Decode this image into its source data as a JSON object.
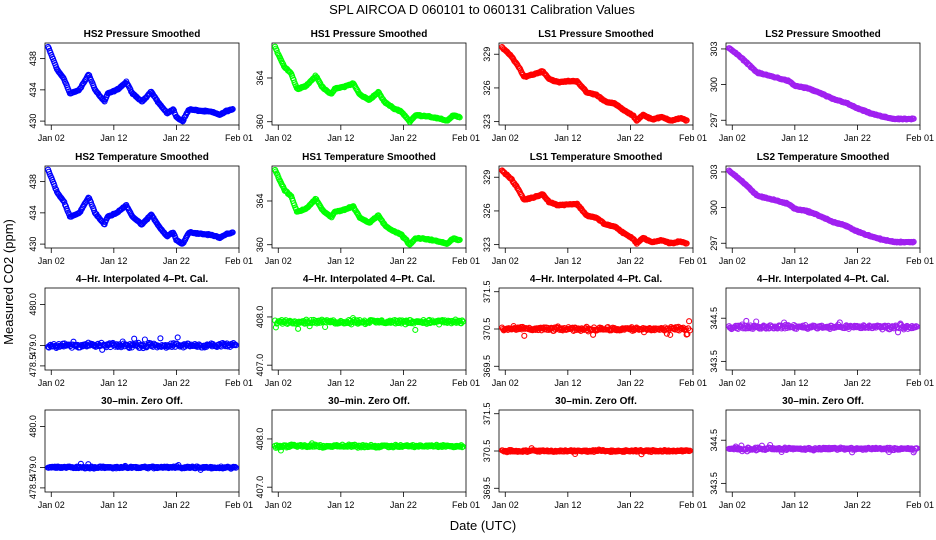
{
  "figure": {
    "title": "SPL   AIRCOA D   060101 to 060131   Calibration Values",
    "xlabel": "Date (UTC)",
    "ylabel": "Measured CO2 (ppm)"
  },
  "series_colors": {
    "HS2": "#0000ff",
    "HS1": "#00ff00",
    "LS1": "#ff0000",
    "LS2": "#a020f0"
  },
  "chart_data": [
    {
      "type": "scatter",
      "series": "HS2",
      "title": "HS2 Pressure Smoothed",
      "xlabel": "",
      "ylabel": "",
      "xlim": [
        0,
        31
      ],
      "ylim": [
        429.5,
        440
      ],
      "xticks": [
        1,
        11,
        21,
        31
      ],
      "xtick_labels": [
        "Jan 02",
        "Jan 12",
        "Jan 22",
        "Feb 01"
      ],
      "yticks": [
        430,
        434,
        438
      ],
      "ytick_labels": [
        "430",
        "434",
        "438"
      ],
      "trend": [
        [
          0.5,
          439.5
        ],
        [
          2,
          436.5
        ],
        [
          3,
          435.5
        ],
        [
          4,
          433.5
        ],
        [
          5.5,
          434
        ],
        [
          7,
          436
        ],
        [
          8,
          434
        ],
        [
          9.5,
          432.5
        ],
        [
          10,
          433.5
        ],
        [
          11.5,
          434
        ],
        [
          13,
          435
        ],
        [
          14,
          433.5
        ],
        [
          15.5,
          432.5
        ],
        [
          17,
          433.8
        ],
        [
          18,
          432.5
        ],
        [
          19.5,
          431
        ],
        [
          20.5,
          431.5
        ],
        [
          21,
          430.5
        ],
        [
          22,
          430
        ],
        [
          23,
          431.5
        ],
        [
          25,
          431.3
        ],
        [
          26.5,
          431.2
        ],
        [
          28,
          430.8
        ],
        [
          29,
          431.3
        ],
        [
          30,
          431.5
        ]
      ]
    },
    {
      "type": "scatter",
      "series": "HS1",
      "title": "HS1 Pressure Smoothed",
      "xlabel": "",
      "ylabel": "",
      "xlim": [
        0,
        31
      ],
      "ylim": [
        359.7,
        367.2
      ],
      "xticks": [
        1,
        11,
        21,
        31
      ],
      "xtick_labels": [
        "Jan 02",
        "Jan 12",
        "Jan 22",
        "Feb 01"
      ],
      "yticks": [
        360,
        364
      ],
      "ytick_labels": [
        "360",
        "364"
      ],
      "trend": [
        [
          0.5,
          366.8
        ],
        [
          2,
          365
        ],
        [
          3,
          364.5
        ],
        [
          4,
          363
        ],
        [
          5.5,
          363.3
        ],
        [
          7,
          364.2
        ],
        [
          8,
          363.2
        ],
        [
          9.5,
          362.5
        ],
        [
          10,
          363
        ],
        [
          11.5,
          363.2
        ],
        [
          13,
          363.5
        ],
        [
          14,
          362.5
        ],
        [
          15.5,
          362
        ],
        [
          17,
          362.7
        ],
        [
          18,
          361.8
        ],
        [
          19.5,
          361.2
        ],
        [
          20.5,
          361
        ],
        [
          21.5,
          360.4
        ],
        [
          22,
          360
        ],
        [
          23,
          360.6
        ],
        [
          25,
          360.5
        ],
        [
          26.5,
          360.3
        ],
        [
          28,
          360.1
        ],
        [
          29,
          360.6
        ],
        [
          30,
          360.4
        ]
      ]
    },
    {
      "type": "scatter",
      "series": "LS1",
      "title": "LS1 Pressure Smoothed",
      "xlabel": "",
      "ylabel": "",
      "xlim": [
        0,
        31
      ],
      "ylim": [
        322.7,
        330
      ],
      "xticks": [
        1,
        11,
        21,
        31
      ],
      "xtick_labels": [
        "Jan 02",
        "Jan 12",
        "Jan 22",
        "Feb 01"
      ],
      "yticks": [
        323,
        326,
        329
      ],
      "ytick_labels": [
        "323",
        "326",
        "329"
      ],
      "trend": [
        [
          0.5,
          329.6
        ],
        [
          2,
          328.8
        ],
        [
          3,
          328
        ],
        [
          4,
          327
        ],
        [
          5.5,
          327.2
        ],
        [
          7,
          327.5
        ],
        [
          8,
          326.8
        ],
        [
          9.5,
          326.5
        ],
        [
          11,
          326.6
        ],
        [
          12.5,
          326.6
        ],
        [
          14,
          325.6
        ],
        [
          15.5,
          325.4
        ],
        [
          17,
          324.8
        ],
        [
          18.5,
          324.6
        ],
        [
          20,
          324
        ],
        [
          21.5,
          323.5
        ],
        [
          22,
          323.1
        ],
        [
          23,
          323.6
        ],
        [
          24.5,
          323.2
        ],
        [
          26,
          323.4
        ],
        [
          27.5,
          323.1
        ],
        [
          29,
          323.3
        ],
        [
          30,
          323.1
        ]
      ]
    },
    {
      "type": "scatter",
      "series": "LS2",
      "title": "LS2 Pressure Smoothed",
      "xlabel": "",
      "ylabel": "",
      "xlim": [
        0,
        31
      ],
      "ylim": [
        296.6,
        303.5
      ],
      "xticks": [
        1,
        11,
        21,
        31
      ],
      "xtick_labels": [
        "Jan 02",
        "Jan 12",
        "Jan 22",
        "Feb 01"
      ],
      "yticks": [
        297,
        300,
        303
      ],
      "ytick_labels": [
        "297",
        "300",
        "303"
      ],
      "trend": [
        [
          0.5,
          303.1
        ],
        [
          3,
          302
        ],
        [
          5,
          301
        ],
        [
          8,
          300.6
        ],
        [
          10,
          300.3
        ],
        [
          11,
          299.9
        ],
        [
          13,
          299.7
        ],
        [
          15,
          299.3
        ],
        [
          17,
          298.8
        ],
        [
          19,
          298.5
        ],
        [
          21,
          298
        ],
        [
          23,
          297.6
        ],
        [
          25,
          297.3
        ],
        [
          27,
          297.1
        ],
        [
          30,
          297.1
        ]
      ]
    },
    {
      "type": "scatter",
      "series": "HS2",
      "title": "HS2 Temperature Smoothed",
      "xlabel": "",
      "ylabel": "",
      "xlim": [
        0,
        31
      ],
      "ylim": [
        429.5,
        440
      ],
      "xticks": [
        1,
        11,
        21,
        31
      ],
      "xtick_labels": [
        "Jan 02",
        "Jan 12",
        "Jan 22",
        "Feb 01"
      ],
      "yticks": [
        430,
        434,
        438
      ],
      "ytick_labels": [
        "430",
        "434",
        "438"
      ],
      "trend": [
        [
          0.5,
          439.5
        ],
        [
          2,
          436.5
        ],
        [
          3,
          435.5
        ],
        [
          4,
          433.5
        ],
        [
          5.5,
          434
        ],
        [
          7,
          436
        ],
        [
          8,
          434
        ],
        [
          9.5,
          432.5
        ],
        [
          10,
          433.5
        ],
        [
          11.5,
          434
        ],
        [
          13,
          435
        ],
        [
          14,
          433.5
        ],
        [
          15.5,
          432.5
        ],
        [
          17,
          433.8
        ],
        [
          18,
          432.5
        ],
        [
          19.5,
          431
        ],
        [
          20.5,
          431.5
        ],
        [
          21,
          430.5
        ],
        [
          22,
          430
        ],
        [
          23,
          431.5
        ],
        [
          25,
          431.3
        ],
        [
          26.5,
          431.2
        ],
        [
          28,
          430.8
        ],
        [
          29,
          431.3
        ],
        [
          30,
          431.5
        ]
      ]
    },
    {
      "type": "scatter",
      "series": "HS1",
      "title": "HS1 Temperature Smoothed",
      "xlabel": "",
      "ylabel": "",
      "xlim": [
        0,
        31
      ],
      "ylim": [
        359.7,
        367.2
      ],
      "xticks": [
        1,
        11,
        21,
        31
      ],
      "xtick_labels": [
        "Jan 02",
        "Jan 12",
        "Jan 22",
        "Feb 01"
      ],
      "yticks": [
        360,
        364
      ],
      "ytick_labels": [
        "360",
        "364"
      ],
      "trend": [
        [
          0.5,
          366.8
        ],
        [
          2,
          365
        ],
        [
          3,
          364.5
        ],
        [
          4,
          363
        ],
        [
          5.5,
          363.3
        ],
        [
          7,
          364.2
        ],
        [
          8,
          363.2
        ],
        [
          9.5,
          362.5
        ],
        [
          10,
          363
        ],
        [
          11.5,
          363.2
        ],
        [
          13,
          363.5
        ],
        [
          14,
          362.5
        ],
        [
          15.5,
          362
        ],
        [
          17,
          362.7
        ],
        [
          18,
          361.8
        ],
        [
          19.5,
          361.2
        ],
        [
          20.5,
          361
        ],
        [
          21.5,
          360.4
        ],
        [
          22,
          360
        ],
        [
          23,
          360.6
        ],
        [
          25,
          360.5
        ],
        [
          26.5,
          360.3
        ],
        [
          28,
          360.1
        ],
        [
          29,
          360.6
        ],
        [
          30,
          360.4
        ]
      ]
    },
    {
      "type": "scatter",
      "series": "LS1",
      "title": "LS1 Temperature Smoothed",
      "xlabel": "",
      "ylabel": "",
      "xlim": [
        0,
        31
      ],
      "ylim": [
        322.7,
        330
      ],
      "xticks": [
        1,
        11,
        21,
        31
      ],
      "xtick_labels": [
        "Jan 02",
        "Jan 12",
        "Jan 22",
        "Feb 01"
      ],
      "yticks": [
        323,
        326,
        329
      ],
      "ytick_labels": [
        "323",
        "326",
        "329"
      ],
      "trend": [
        [
          0.5,
          329.6
        ],
        [
          2,
          328.8
        ],
        [
          3,
          328
        ],
        [
          4,
          327
        ],
        [
          5.5,
          327.2
        ],
        [
          7,
          327.5
        ],
        [
          8,
          326.8
        ],
        [
          9.5,
          326.5
        ],
        [
          11,
          326.6
        ],
        [
          12.5,
          326.6
        ],
        [
          14,
          325.6
        ],
        [
          15.5,
          325.4
        ],
        [
          17,
          324.8
        ],
        [
          18.5,
          324.6
        ],
        [
          20,
          324
        ],
        [
          21.5,
          323.5
        ],
        [
          22,
          323.1
        ],
        [
          23,
          323.6
        ],
        [
          24.5,
          323.2
        ],
        [
          26,
          323.4
        ],
        [
          27.5,
          323.1
        ],
        [
          29,
          323.3
        ],
        [
          30,
          323.1
        ]
      ]
    },
    {
      "type": "scatter",
      "series": "LS2",
      "title": "LS2 Temperature Smoothed",
      "xlabel": "",
      "ylabel": "",
      "xlim": [
        0,
        31
      ],
      "ylim": [
        296.6,
        303.5
      ],
      "xticks": [
        1,
        11,
        21,
        31
      ],
      "xtick_labels": [
        "Jan 02",
        "Jan 12",
        "Jan 22",
        "Feb 01"
      ],
      "yticks": [
        297,
        300,
        303
      ],
      "ytick_labels": [
        "297",
        "300",
        "303"
      ],
      "trend": [
        [
          0.5,
          303.1
        ],
        [
          3,
          302
        ],
        [
          5,
          301
        ],
        [
          8,
          300.6
        ],
        [
          10,
          300.3
        ],
        [
          11,
          299.9
        ],
        [
          13,
          299.7
        ],
        [
          15,
          299.3
        ],
        [
          17,
          298.8
        ],
        [
          19,
          298.5
        ],
        [
          21,
          298
        ],
        [
          23,
          297.6
        ],
        [
          25,
          297.3
        ],
        [
          27,
          297.1
        ],
        [
          30,
          297.1
        ]
      ]
    },
    {
      "type": "scatter",
      "series": "HS2",
      "title": "4–Hr. Interpolated 4–Pt. Cal.",
      "xlabel": "",
      "ylabel": "",
      "xlim": [
        0,
        31
      ],
      "ylim": [
        478.4,
        480.4
      ],
      "xticks": [
        1,
        11,
        21,
        31
      ],
      "xtick_labels": [
        "Jan 02",
        "Jan 12",
        "Jan 22",
        "Feb 01"
      ],
      "yticks": [
        478.5,
        479.0,
        480.0
      ],
      "ytick_labels": [
        "478.5",
        "479.0",
        "480.0"
      ],
      "trend": [
        [
          0.5,
          479.0
        ],
        [
          30.5,
          479.0
        ]
      ],
      "noise": 0.06
    },
    {
      "type": "scatter",
      "series": "HS1",
      "title": "4–Hr. Interpolated 4–Pt. Cal.",
      "xlabel": "",
      "ylabel": "",
      "xlim": [
        0,
        31
      ],
      "ylim": [
        406.9,
        408.6
      ],
      "xticks": [
        1,
        11,
        21,
        31
      ],
      "xtick_labels": [
        "Jan 02",
        "Jan 12",
        "Jan 22",
        "Feb 01"
      ],
      "yticks": [
        407.0,
        408.0
      ],
      "ytick_labels": [
        "407.0",
        "408.0"
      ],
      "trend": [
        [
          0.5,
          407.9
        ],
        [
          30.5,
          407.9
        ]
      ],
      "noise": 0.05
    },
    {
      "type": "scatter",
      "series": "LS1",
      "title": "4–Hr. Interpolated 4–Pt. Cal.",
      "xlabel": "",
      "ylabel": "",
      "xlim": [
        0,
        31
      ],
      "ylim": [
        369.4,
        371.6
      ],
      "xticks": [
        1,
        11,
        21,
        31
      ],
      "xtick_labels": [
        "Jan 02",
        "Jan 12",
        "Jan 22",
        "Feb 01"
      ],
      "yticks": [
        369.5,
        370.5,
        371.5
      ],
      "ytick_labels": [
        "369.5",
        "370.5",
        "371.5"
      ],
      "trend": [
        [
          0.5,
          370.5
        ],
        [
          30.5,
          370.5
        ]
      ],
      "noise": 0.06
    },
    {
      "type": "scatter",
      "series": "LS2",
      "title": "4–Hr. Interpolated 4–Pt. Cal.",
      "xlabel": "",
      "ylabel": "",
      "xlim": [
        0,
        31
      ],
      "ylim": [
        343.3,
        345.2
      ],
      "xticks": [
        1,
        11,
        21,
        31
      ],
      "xtick_labels": [
        "Jan 02",
        "Jan 12",
        "Jan 22",
        "Feb 01"
      ],
      "yticks": [
        343.5,
        344.5
      ],
      "ytick_labels": [
        "343.5",
        "344.5"
      ],
      "trend": [
        [
          0.5,
          344.3
        ],
        [
          30.5,
          344.3
        ]
      ],
      "noise": 0.05
    },
    {
      "type": "scatter",
      "series": "HS2",
      "title": "30–min. Zero Off.",
      "xlabel": "",
      "ylabel": "",
      "xlim": [
        0,
        31
      ],
      "ylim": [
        478.4,
        480.4
      ],
      "xticks": [
        1,
        11,
        21,
        31
      ],
      "xtick_labels": [
        "Jan 02",
        "Jan 12",
        "Jan 22",
        "Feb 01"
      ],
      "yticks": [
        478.5,
        479.0,
        480.0
      ],
      "ytick_labels": [
        "478.5",
        "479.0",
        "480.0"
      ],
      "trend": [
        [
          0.5,
          479.0
        ],
        [
          30.5,
          479.0
        ]
      ],
      "noise": 0.03
    },
    {
      "type": "scatter",
      "series": "HS1",
      "title": "30–min. Zero Off.",
      "xlabel": "",
      "ylabel": "",
      "xlim": [
        0,
        31
      ],
      "ylim": [
        406.9,
        408.6
      ],
      "xticks": [
        1,
        11,
        21,
        31
      ],
      "xtick_labels": [
        "Jan 02",
        "Jan 12",
        "Jan 22",
        "Feb 01"
      ],
      "yticks": [
        407.0,
        408.0
      ],
      "ytick_labels": [
        "407.0",
        "408.0"
      ],
      "trend": [
        [
          0.5,
          407.85
        ],
        [
          30.5,
          407.85
        ]
      ],
      "noise": 0.03
    },
    {
      "type": "scatter",
      "series": "LS1",
      "title": "30–min. Zero Off.",
      "xlabel": "",
      "ylabel": "",
      "xlim": [
        0,
        31
      ],
      "ylim": [
        369.4,
        371.6
      ],
      "xticks": [
        1,
        11,
        21,
        31
      ],
      "xtick_labels": [
        "Jan 02",
        "Jan 12",
        "Jan 22",
        "Feb 01"
      ],
      "yticks": [
        369.5,
        370.5,
        371.5
      ],
      "ytick_labels": [
        "369.5",
        "370.5",
        "371.5"
      ],
      "trend": [
        [
          0.5,
          370.5
        ],
        [
          30.5,
          370.5
        ]
      ],
      "noise": 0.03
    },
    {
      "type": "scatter",
      "series": "LS2",
      "title": "30–min. Zero Off.",
      "xlabel": "",
      "ylabel": "",
      "xlim": [
        0,
        31
      ],
      "ylim": [
        343.3,
        345.2
      ],
      "xticks": [
        1,
        11,
        21,
        31
      ],
      "xtick_labels": [
        "Jan 02",
        "Jan 12",
        "Jan 22",
        "Feb 01"
      ],
      "yticks": [
        343.5,
        344.5
      ],
      "ytick_labels": [
        "343.5",
        "344.5"
      ],
      "trend": [
        [
          0.5,
          344.3
        ],
        [
          30.5,
          344.3
        ]
      ],
      "noise": 0.03
    }
  ]
}
